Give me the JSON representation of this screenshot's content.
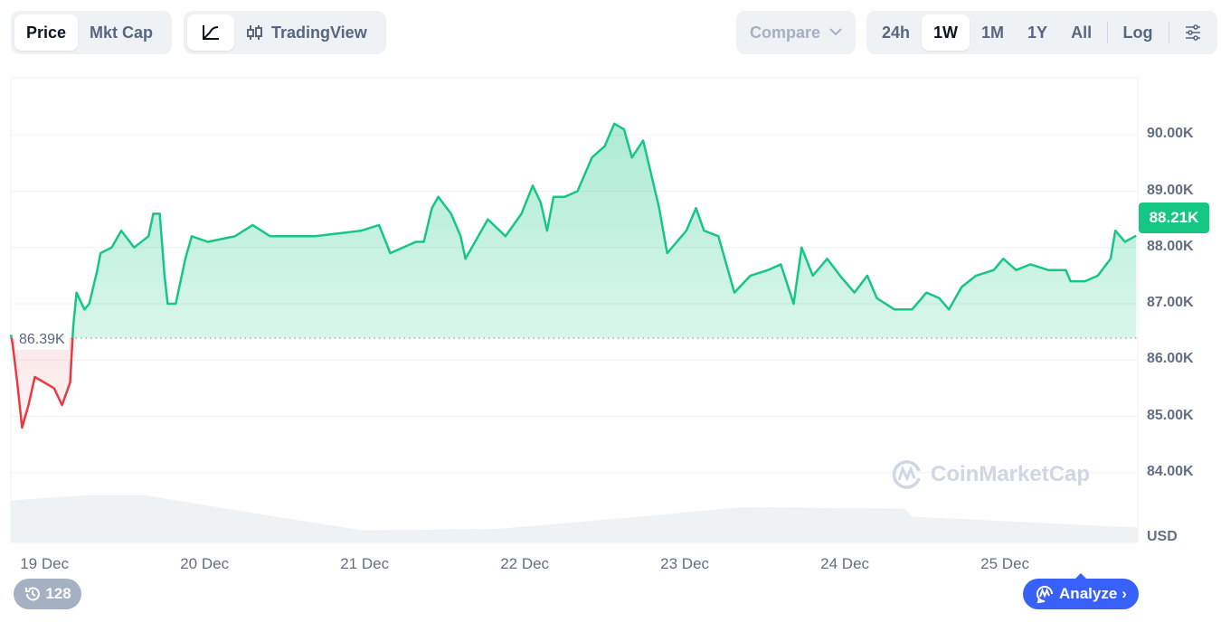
{
  "toolbar": {
    "price_label": "Price",
    "mktcap_label": "Mkt Cap",
    "tradingview_label": "TradingView",
    "compare_label": "Compare",
    "ranges": [
      "24h",
      "1W",
      "1M",
      "1Y",
      "All"
    ],
    "active_range": "1W",
    "log_label": "Log"
  },
  "current_price_label": "88.21K",
  "baseline_label": "86.39K",
  "watermark": "CoinMarketCap",
  "history_count": "128",
  "analyze_label": "Analyze",
  "colors": {
    "up": "#16c784",
    "down": "#ea3943",
    "accent": "#3861fb"
  },
  "chart_data": {
    "type": "area",
    "title": "",
    "xlabel": "",
    "ylabel": "USD",
    "x_unit": "days since 19 Dec 00:00",
    "xlim": [
      -0.21,
      6.83
    ],
    "ylim": [
      82.76,
      91.0
    ],
    "y_ticks": [
      84,
      85,
      86,
      87,
      88,
      89,
      90
    ],
    "y_tick_labels": [
      "84.00K",
      "85.00K",
      "86.00K",
      "87.00K",
      "88.00K",
      "89.00K",
      "90.00K"
    ],
    "x_ticks": [
      0,
      1,
      2,
      3,
      4,
      5,
      6
    ],
    "x_tick_labels": [
      "19 Dec",
      "20 Dec",
      "21 Dec",
      "22 Dec",
      "23 Dec",
      "24 Dec",
      "25 Dec"
    ],
    "baseline": 86.39,
    "grid": true,
    "series": [
      {
        "name": "Price (K USD)",
        "points": [
          [
            -0.21,
            86.45
          ],
          [
            -0.2,
            86.3
          ],
          [
            -0.17,
            85.6
          ],
          [
            -0.14,
            84.8
          ],
          [
            -0.1,
            85.2
          ],
          [
            -0.06,
            85.7
          ],
          [
            0,
            85.6
          ],
          [
            0.06,
            85.5
          ],
          [
            0.11,
            85.2
          ],
          [
            0.16,
            85.6
          ],
          [
            0.18,
            86.6
          ],
          [
            0.2,
            87.2
          ],
          [
            0.25,
            86.9
          ],
          [
            0.28,
            87.0
          ],
          [
            0.33,
            87.6
          ],
          [
            0.35,
            87.9
          ],
          [
            0.42,
            88.0
          ],
          [
            0.48,
            88.3
          ],
          [
            0.56,
            88.0
          ],
          [
            0.65,
            88.2
          ],
          [
            0.68,
            88.6
          ],
          [
            0.72,
            88.6
          ],
          [
            0.75,
            87.5
          ],
          [
            0.77,
            87.0
          ],
          [
            0.82,
            87.0
          ],
          [
            0.88,
            87.8
          ],
          [
            0.92,
            88.2
          ],
          [
            1.02,
            88.1
          ],
          [
            1.19,
            88.2
          ],
          [
            1.3,
            88.4
          ],
          [
            1.41,
            88.2
          ],
          [
            1.58,
            88.2
          ],
          [
            1.69,
            88.2
          ],
          [
            1.98,
            88.3
          ],
          [
            2.09,
            88.4
          ],
          [
            2.16,
            87.9
          ],
          [
            2.32,
            88.1
          ],
          [
            2.37,
            88.1
          ],
          [
            2.42,
            88.7
          ],
          [
            2.46,
            88.9
          ],
          [
            2.54,
            88.6
          ],
          [
            2.6,
            88.2
          ],
          [
            2.63,
            87.8
          ],
          [
            2.71,
            88.2
          ],
          [
            2.77,
            88.5
          ],
          [
            2.88,
            88.2
          ],
          [
            2.98,
            88.6
          ],
          [
            3.05,
            89.1
          ],
          [
            3.1,
            88.8
          ],
          [
            3.14,
            88.3
          ],
          [
            3.18,
            88.9
          ],
          [
            3.25,
            88.9
          ],
          [
            3.33,
            89.0
          ],
          [
            3.42,
            89.6
          ],
          [
            3.5,
            89.8
          ],
          [
            3.56,
            90.2
          ],
          [
            3.62,
            90.1
          ],
          [
            3.67,
            89.6
          ],
          [
            3.74,
            89.9
          ],
          [
            3.79,
            89.3
          ],
          [
            3.84,
            88.7
          ],
          [
            3.89,
            87.9
          ],
          [
            4.01,
            88.3
          ],
          [
            4.07,
            88.7
          ],
          [
            4.12,
            88.3
          ],
          [
            4.21,
            88.2
          ],
          [
            4.27,
            87.6
          ],
          [
            4.31,
            87.2
          ],
          [
            4.41,
            87.5
          ],
          [
            4.52,
            87.6
          ],
          [
            4.6,
            87.7
          ],
          [
            4.68,
            87.0
          ],
          [
            4.73,
            88.0
          ],
          [
            4.8,
            87.5
          ],
          [
            4.89,
            87.8
          ],
          [
            4.97,
            87.5
          ],
          [
            5.06,
            87.2
          ],
          [
            5.14,
            87.5
          ],
          [
            5.2,
            87.1
          ],
          [
            5.31,
            86.9
          ],
          [
            5.42,
            86.9
          ],
          [
            5.51,
            87.2
          ],
          [
            5.59,
            87.1
          ],
          [
            5.65,
            86.9
          ],
          [
            5.73,
            87.3
          ],
          [
            5.82,
            87.5
          ],
          [
            5.93,
            87.6
          ],
          [
            5.99,
            87.8
          ],
          [
            6.07,
            87.6
          ],
          [
            6.16,
            87.7
          ],
          [
            6.27,
            87.6
          ],
          [
            6.38,
            87.6
          ],
          [
            6.41,
            87.4
          ],
          [
            6.5,
            87.4
          ],
          [
            6.58,
            87.5
          ],
          [
            6.66,
            87.8
          ],
          [
            6.69,
            88.3
          ],
          [
            6.75,
            88.1
          ],
          [
            6.82,
            88.21
          ]
        ]
      },
      {
        "name": "Volume (relative)",
        "points": [
          [
            -0.21,
            62
          ],
          [
            0.28,
            70
          ],
          [
            0.62,
            70
          ],
          [
            1.13,
            50
          ],
          [
            1.98,
            18
          ],
          [
            2.83,
            20
          ],
          [
            3.67,
            37
          ],
          [
            4.35,
            52
          ],
          [
            5.37,
            50
          ],
          [
            5.42,
            38
          ],
          [
            6.83,
            22
          ]
        ]
      }
    ]
  }
}
